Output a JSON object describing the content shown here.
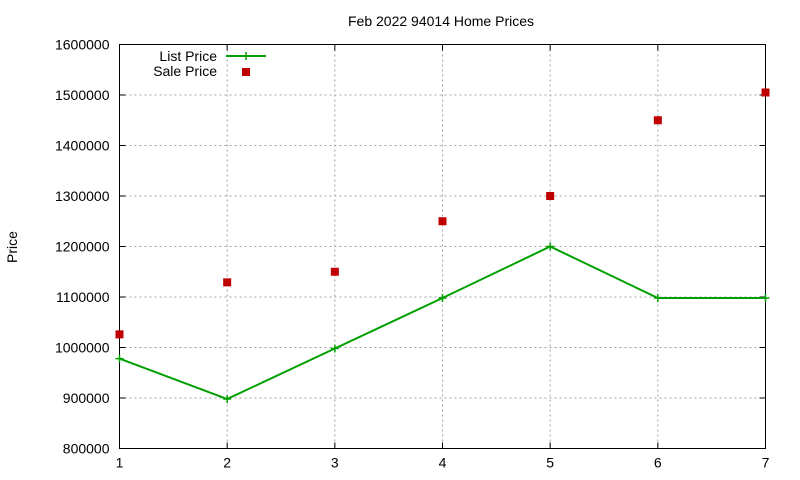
{
  "chart_data": {
    "type": "line",
    "title": "Feb 2022 94014 Home Prices",
    "xlabel": "",
    "ylabel": "Price",
    "x": [
      1,
      2,
      3,
      4,
      5,
      6,
      7
    ],
    "xlim": [
      1,
      7
    ],
    "ylim": [
      800000,
      1600000
    ],
    "xticks": [
      "1",
      "2",
      "3",
      "4",
      "5",
      "6",
      "7"
    ],
    "yticks": [
      "800000",
      "900000",
      "1000000",
      "1100000",
      "1200000",
      "1300000",
      "1400000",
      "1500000",
      "1600000"
    ],
    "grid": true,
    "legend_position": "top-left",
    "series": [
      {
        "name": "List Price",
        "style": "line+cross",
        "color": "#00a000",
        "values": [
          978000,
          898000,
          998000,
          1098000,
          1200000,
          1098000,
          1098000
        ]
      },
      {
        "name": "Sale Price",
        "style": "square-points",
        "color": "#c00000",
        "values": [
          1026000,
          1129000,
          1150000,
          1250000,
          1300000,
          1450000,
          1505000
        ]
      }
    ]
  }
}
